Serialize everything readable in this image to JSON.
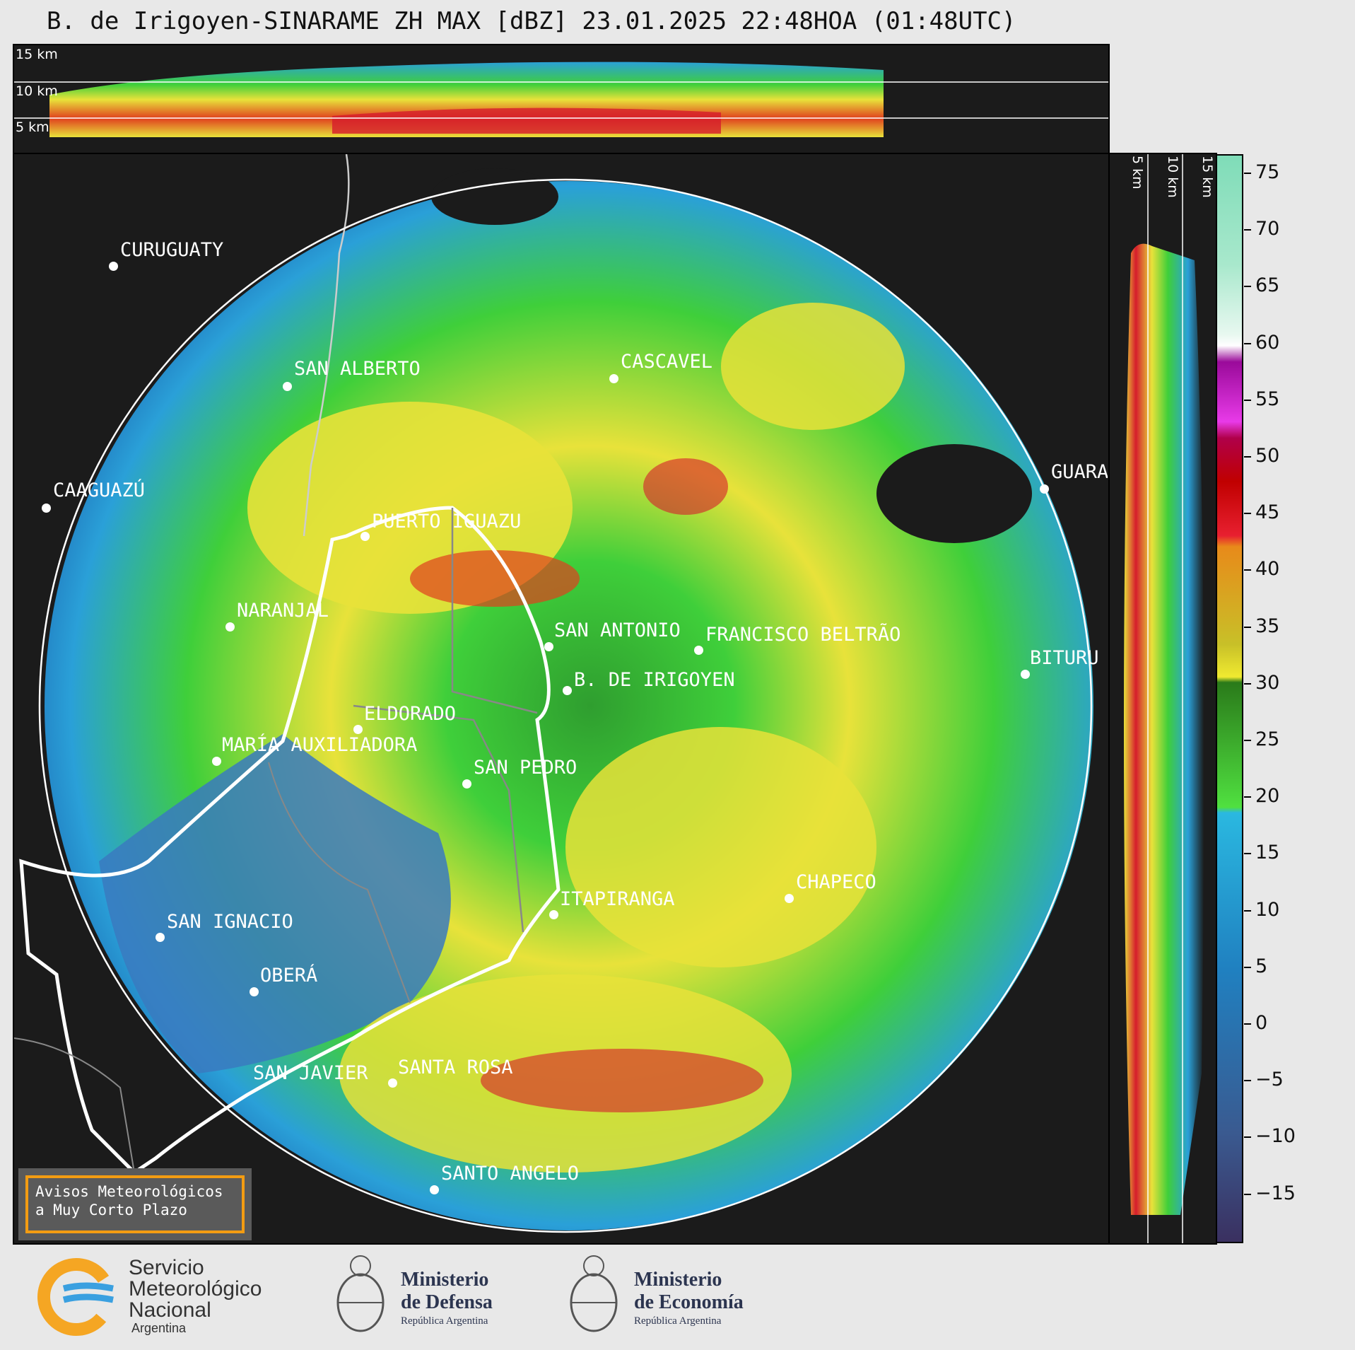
{
  "title": "B. de Irigoyen-SINARAME ZH MAX [dBZ] 23.01.2025 22:48HOA (01:48UTC)",
  "top_profile": {
    "height_labels": [
      "15 km",
      "10 km",
      "5 km"
    ]
  },
  "side_profile": {
    "height_labels": [
      "5 km",
      "10 km",
      "15 km"
    ]
  },
  "cities": [
    "CURUGUATY",
    "SAN ALBERTO",
    "CASCAVEL",
    "CAAGUAZÚ",
    "GUARA",
    "PUERTO IGUAZU",
    "NARANJAL",
    "SAN ANTONIO",
    "FRANCISCO BELTRÃO",
    "B. DE IRIGOYEN",
    "BITURU",
    "ELDORADO",
    "MARÍA AUXILIADORA",
    "SAN PEDRO",
    "CHAPECO",
    "ITAPIRANGA",
    "SAN IGNACIO",
    "OBERÁ",
    "SAN JAVIER",
    "SANTA ROSA",
    "SANTO ANGELO"
  ],
  "avisos": {
    "line1": "Avisos Meteorológicos",
    "line2": "a Muy Corto Plazo"
  },
  "colorbar": {
    "unit": "dBZ",
    "ticks": [
      "75",
      "70",
      "65",
      "60",
      "55",
      "50",
      "45",
      "40",
      "35",
      "30",
      "25",
      "20",
      "15",
      "10",
      "5",
      "0",
      "−5",
      "−10",
      "−15"
    ]
  },
  "logos": {
    "smn": {
      "line1": "Servicio",
      "line2": "Meteorológico",
      "line3": "Nacional",
      "line4": "Argentina"
    },
    "defensa": {
      "line1": "Ministerio",
      "line2": "de Defensa",
      "line3": "República Argentina"
    },
    "economia": {
      "line1": "Ministerio",
      "line2": "de Economía",
      "line3": "República Argentina"
    }
  }
}
